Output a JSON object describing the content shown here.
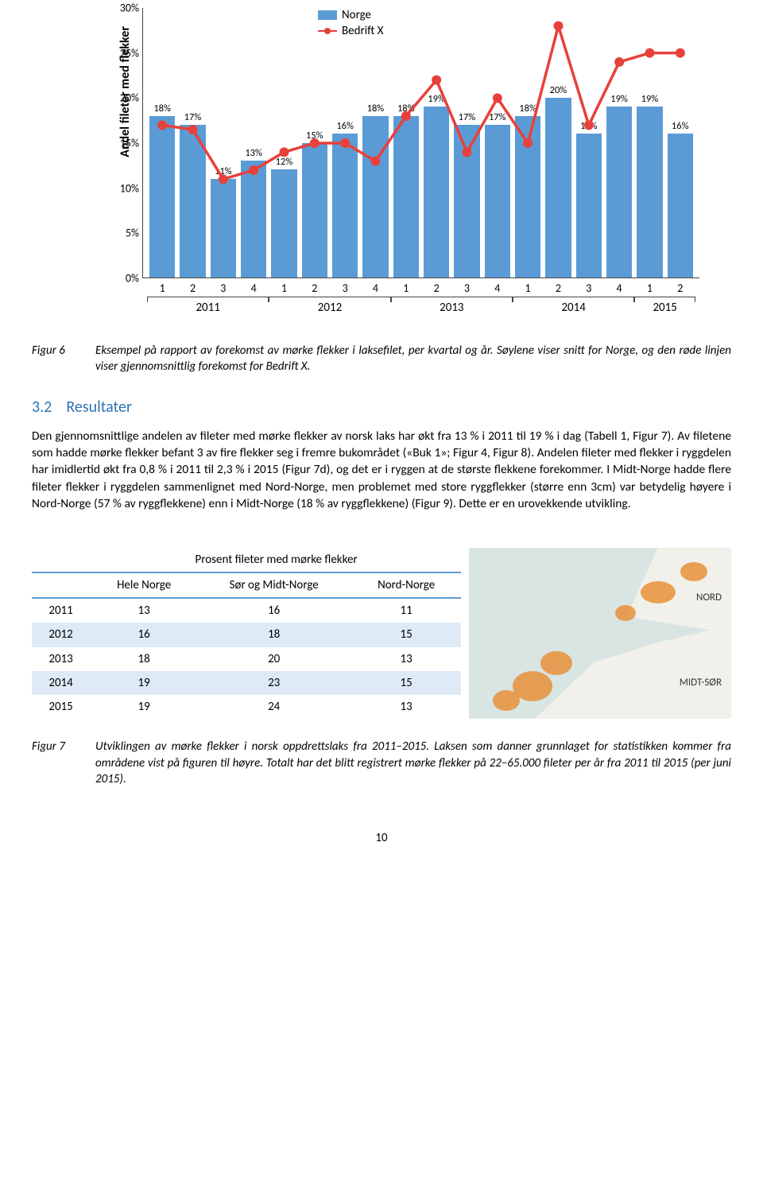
{
  "chart": {
    "type": "bar+line",
    "y_axis_label": "Andel fileter med flekker",
    "y_ticks": [
      "0%",
      "5%",
      "10%",
      "15%",
      "20%",
      "25%",
      "30%"
    ],
    "y_max": 30,
    "legend": {
      "bar_label": "Norge",
      "line_label": "Bedrift X"
    },
    "bar_color": "#5b9bd5",
    "line_color": "#e8403a",
    "marker_color": "#e8403a",
    "x_quarters": [
      "1",
      "2",
      "3",
      "4",
      "1",
      "2",
      "3",
      "4",
      "1",
      "2",
      "3",
      "4",
      "1",
      "2",
      "3",
      "4",
      "1",
      "2"
    ],
    "years": [
      {
        "label": "2011",
        "span": 4
      },
      {
        "label": "2012",
        "span": 4
      },
      {
        "label": "2013",
        "span": 4
      },
      {
        "label": "2014",
        "span": 4
      },
      {
        "label": "2015",
        "span": 2
      }
    ],
    "bar_values": [
      18,
      17,
      11,
      13,
      12,
      15,
      16,
      18,
      18,
      19,
      17,
      17,
      18,
      20,
      16,
      19,
      19,
      16
    ],
    "bar_labels": [
      "18%",
      "17%",
      "11%",
      "13%",
      "12%",
      "15%",
      "16%",
      "18%",
      "18%",
      "19%",
      "17%",
      "17%",
      "18%",
      "20%",
      "16%",
      "19%",
      "19%",
      "16%"
    ],
    "line_values": [
      17,
      16.5,
      11,
      12,
      14,
      15,
      15,
      13,
      18,
      22,
      14,
      20,
      15,
      28,
      17,
      24,
      25,
      25
    ]
  },
  "figure6": {
    "label": "Figur 6",
    "text": "Eksempel på rapport av forekomst av mørke flekker i laksefilet, per kvartal og år. Søylene viser snitt for Norge, og den røde linjen viser gjennomsnittlig forekomst for Bedrift X."
  },
  "section": {
    "number": "3.2",
    "title": "Resultater"
  },
  "paragraph": "Den gjennomsnittlige andelen av fileter med mørke flekker av norsk laks har økt fra 13 % i 2011 til 19 % i dag (Tabell 1, Figur 7). Av filetene som hadde mørke flekker befant 3 av fire flekker seg i fremre bukområdet («Buk 1»; Figur 4, Figur 8). Andelen fileter med flekker i ryggdelen har imidlertid økt fra 0,8 % i 2011 til 2,3 % i 2015 (Figur 7d), og det er i ryggen at de største flekkene forekommer. I Midt-Norge hadde flere fileter flekker i ryggdelen sammenlignet med Nord-Norge, men problemet med store ryggflekker (større enn 3cm) var betydelig høyere i Nord-Norge (57 % av ryggflekkene) enn i Midt-Norge (18 % av ryggflekkene) (Figur 9). Dette er en urovekkende utvikling.",
  "table": {
    "title": "Prosent fileter med mørke flekker",
    "columns": [
      "Hele Norge",
      "Sør og Midt-Norge",
      "Nord-Norge"
    ],
    "rows": [
      {
        "year": "2011",
        "vals": [
          "13",
          "16",
          "11"
        ]
      },
      {
        "year": "2012",
        "vals": [
          "16",
          "18",
          "15"
        ]
      },
      {
        "year": "2013",
        "vals": [
          "18",
          "20",
          "13"
        ]
      },
      {
        "year": "2014",
        "vals": [
          "19",
          "23",
          "15"
        ]
      },
      {
        "year": "2015",
        "vals": [
          "19",
          "24",
          "13"
        ]
      }
    ],
    "alt_row_color": "#deebf6",
    "border_color": "#5b9bd5"
  },
  "map": {
    "label_nord": "NORD",
    "label_midt": "MIDT-SØR",
    "blob_color": "#e8903a",
    "sea_color": "#d8e5e2",
    "land_color": "#f2f0ea"
  },
  "figure7": {
    "label": "Figur 7",
    "text": "Utviklingen av mørke flekker i norsk oppdrettslaks fra 2011–2015. Laksen som danner grunnlaget for statistikken kommer fra områdene vist på figuren til høyre. Totalt har det blitt registrert mørke flekker på 22–65.000 fileter per år fra 2011 til 2015 (per juni 2015)."
  },
  "page_number": "10"
}
